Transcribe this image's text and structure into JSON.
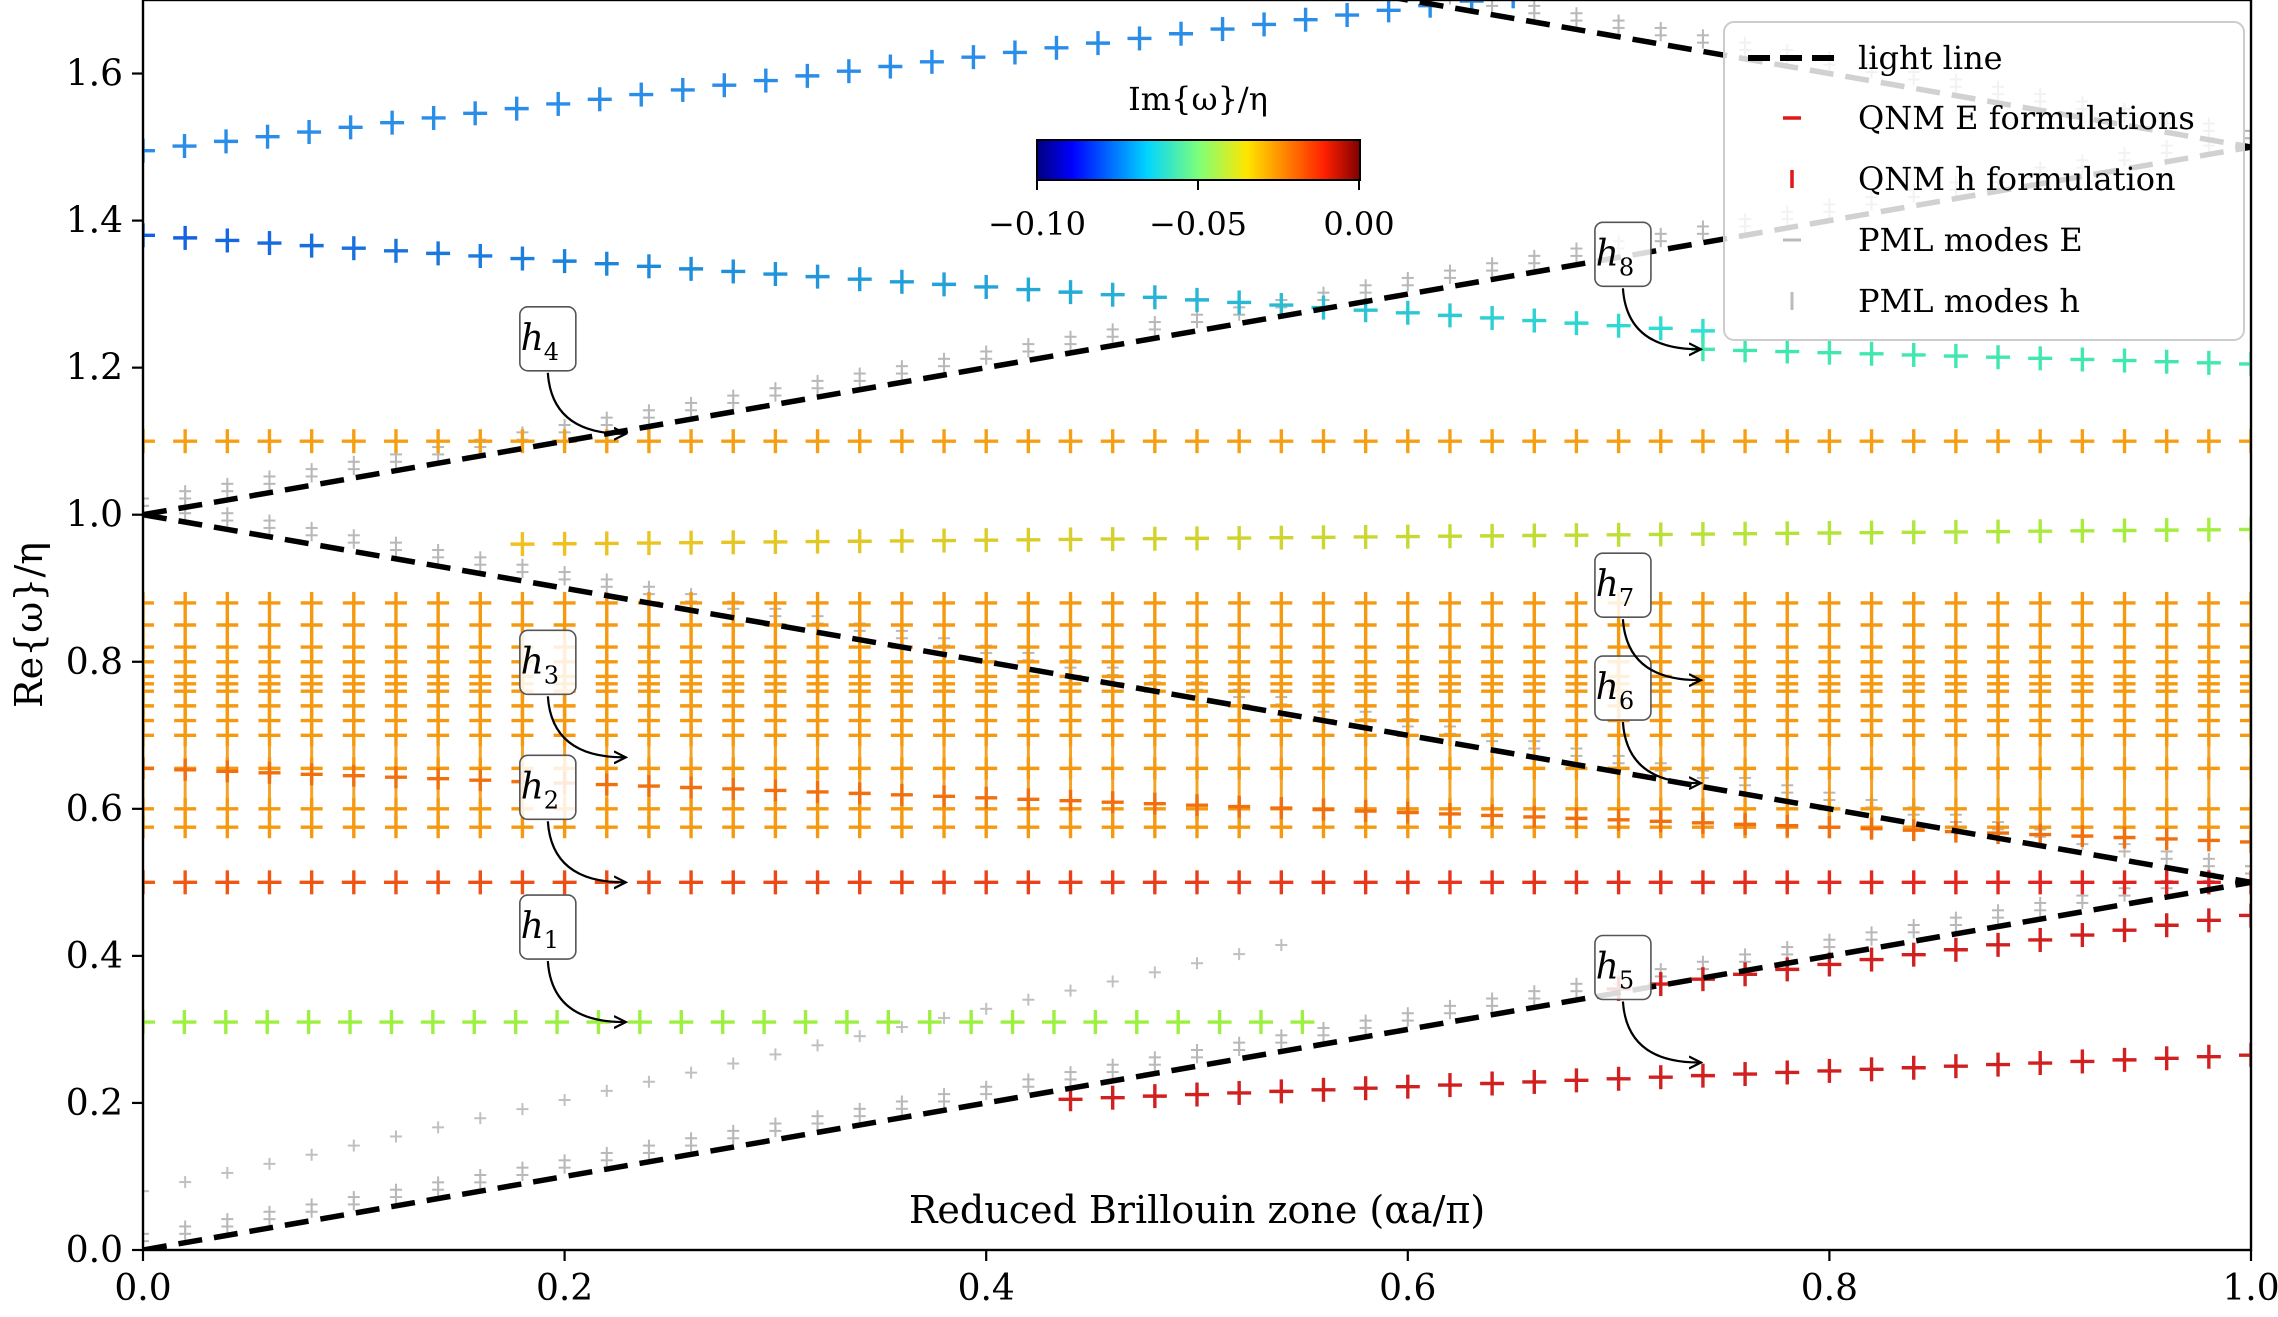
{
  "chart_data": {
    "type": "scatter",
    "title": "",
    "xlabel": "Reduced Brillouin zone (αa/π)",
    "ylabel": "Re{ω}/η",
    "xlim": [
      0.0,
      1.0
    ],
    "ylim": [
      0.0,
      1.7
    ],
    "x_ticks": [
      "0.0",
      "0.2",
      "0.4",
      "0.6",
      "0.8",
      "1.0"
    ],
    "y_ticks": [
      "0.0",
      "0.2",
      "0.4",
      "0.6",
      "0.8",
      "1.0",
      "1.2",
      "1.4",
      "1.6"
    ],
    "colorbar": {
      "label": "Im{ω}/η",
      "min": -0.1,
      "max": 0.0,
      "ticks": [
        "−0.10",
        "−0.05",
        "0.00"
      ]
    },
    "legend": {
      "position": "top-right",
      "entries": [
        {
          "label": "light line",
          "style": "dashed-black"
        },
        {
          "label": "QNM E formulations",
          "style": "red-dash-marker"
        },
        {
          "label": "QNM h formulation",
          "style": "red-bar-marker"
        },
        {
          "label": "PML modes E",
          "style": "gray-dash-marker"
        },
        {
          "label": "PML modes h",
          "style": "gray-bar-marker"
        }
      ]
    },
    "light_line": [
      {
        "x": [
          0.0,
          1.0
        ],
        "y": [
          0.0,
          0.5
        ]
      },
      {
        "x": [
          0.0,
          1.0
        ],
        "y": [
          1.0,
          0.5
        ]
      },
      {
        "x": [
          0.0,
          1.0
        ],
        "y": [
          1.0,
          1.5
        ]
      },
      {
        "x": [
          0.0,
          1.0
        ],
        "y": [
          2.0,
          1.5
        ]
      }
    ],
    "series": [
      {
        "name": "QNM mode 0.31",
        "color": "#9cf040",
        "x_range": [
          0.0,
          0.55
        ],
        "y": [
          0.31,
          0.31
        ]
      },
      {
        "name": "QNM mode 0.50",
        "color": "#f05a14",
        "x_range": [
          0.0,
          1.0
        ],
        "y": [
          0.5,
          0.5
        ],
        "color_end": "#e02020"
      },
      {
        "name": "QNM mode 1.10",
        "color": "#f5a014",
        "x_range": [
          0.0,
          1.0
        ],
        "y": [
          1.1,
          1.1
        ]
      },
      {
        "name": "QNM mode 1.50",
        "color": "#2a8ee8",
        "x_range": [
          0.0,
          0.65
        ],
        "y": [
          1.495,
          1.705
        ]
      },
      {
        "name": "QNM mode 1.38",
        "color": "#1560e0",
        "x_range": [
          0.0,
          0.74
        ],
        "y": [
          1.38,
          1.25
        ],
        "color_end": "#30e0d0"
      },
      {
        "name": "QNM mode 1.22",
        "color": "#40e8b0",
        "x_range": [
          0.74,
          1.0
        ],
        "y": [
          1.225,
          1.205
        ]
      },
      {
        "name": "QNM mode 0.98",
        "color": "#f0c020",
        "x_range": [
          0.18,
          1.0
        ],
        "y": [
          0.96,
          0.98
        ],
        "color_end": "#a0f040"
      },
      {
        "name": "QNM mode 0.26",
        "color": "#d02020",
        "x_range": [
          0.44,
          1.0
        ],
        "y": [
          0.205,
          0.265
        ]
      },
      {
        "name": "QNM mode 0.44",
        "color": "#d02020",
        "x_range": [
          0.7,
          1.0
        ],
        "y": [
          0.355,
          0.455
        ]
      },
      {
        "name": "QNM band 0.57-0.88 (dense)",
        "color": "#f59a10",
        "x_range": [
          0.0,
          1.0
        ],
        "y_levels": [
          0.575,
          0.6,
          0.655,
          0.7,
          0.72,
          0.74,
          0.76,
          0.77,
          0.78,
          0.8,
          0.82,
          0.85,
          0.88
        ]
      },
      {
        "name": "PML modes (gray)",
        "color": "#b0b0b0",
        "follows": "light_line"
      }
    ],
    "annotations": [
      {
        "label": "h",
        "sub": "1",
        "x": 0.23,
        "y": 0.31
      },
      {
        "label": "h",
        "sub": "2",
        "x": 0.23,
        "y": 0.5
      },
      {
        "label": "h",
        "sub": "3",
        "x": 0.23,
        "y": 0.67
      },
      {
        "label": "h",
        "sub": "4",
        "x": 0.23,
        "y": 1.11
      },
      {
        "label": "h",
        "sub": "5",
        "x": 0.74,
        "y": 0.255
      },
      {
        "label": "h",
        "sub": "6",
        "x": 0.74,
        "y": 0.635
      },
      {
        "label": "h",
        "sub": "7",
        "x": 0.74,
        "y": 0.775
      },
      {
        "label": "h",
        "sub": "8",
        "x": 0.74,
        "y": 1.225
      }
    ]
  }
}
